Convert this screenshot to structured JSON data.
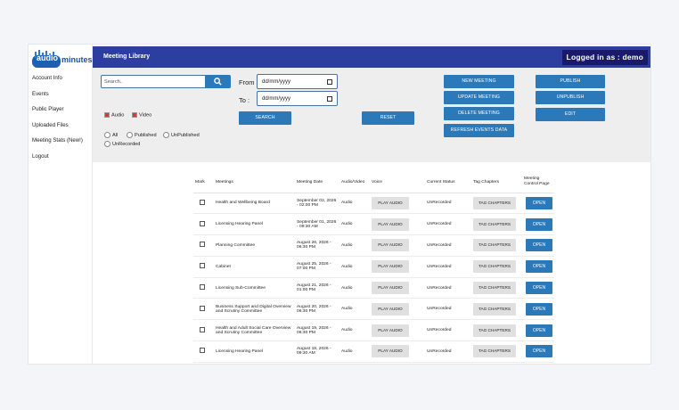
{
  "brand": {
    "logo_part1": "audio",
    "logo_part2": "minutes",
    "accent": "#2c3fa0",
    "button_color": "#2b79b8"
  },
  "sidebar": {
    "items": [
      {
        "label": "Account Info"
      },
      {
        "label": "Events"
      },
      {
        "label": "Public Player"
      },
      {
        "label": "Uploaded Files"
      },
      {
        "label": "Meeting Stats (New!)"
      },
      {
        "label": "Logout"
      }
    ]
  },
  "header": {
    "title": "Meeting Library",
    "login": "Logged in as : demo"
  },
  "filters": {
    "search_placeholder": "Search..",
    "audio_label": "Audio",
    "video_label": "Video",
    "audio_checked": true,
    "video_checked": true,
    "radios": {
      "all": "All",
      "published": "Published",
      "unpublished": "UnPublished",
      "unrecorded": "UnRecorded"
    },
    "from_label": "From :",
    "to_label": "To :",
    "from_value": "dd/mm/yyyy",
    "to_value": "dd/mm/yyyy",
    "search_button": "SEARCH",
    "reset_button": "RESET"
  },
  "actions": {
    "new_meeting": "NEW MEETING",
    "update_meeting": "UPDATE MEETING",
    "delete_meeting": "DELETE MEETING",
    "refresh_events": "REFRESH EVENTS DATA",
    "publish": "PUBLISH",
    "unpublish": "UNPUBLISH",
    "edit": "EDIT"
  },
  "table": {
    "headers": {
      "mark": "Mark",
      "meetings": "Meetings",
      "meeting_date": "Meeting Date",
      "audio_video": "Audio/Video",
      "voice": "Voice",
      "current_status": "Current Status",
      "tag_chapters": "Tag Chapters",
      "control_page": "Meeting Control Page"
    },
    "play_label": "PLAY AUDIO",
    "tag_label": "TAG CHAPTERS",
    "open_label": "OPEN",
    "rows": [
      {
        "meeting": "Health and Wellbeing Board",
        "date": "September 03, 2026 - 02:00 PM",
        "type": "Audio",
        "status": "UnRecorded"
      },
      {
        "meeting": "Licensing Hearing Panel",
        "date": "September 01, 2026 - 09:30 AM",
        "type": "Audio",
        "status": "UnRecorded"
      },
      {
        "meeting": "Planning Committee",
        "date": "August 26, 2026 - 06:30 PM",
        "type": "Audio",
        "status": "UnRecorded"
      },
      {
        "meeting": "Cabinet",
        "date": "August 25, 2026 - 07:00 PM",
        "type": "Audio",
        "status": "UnRecorded"
      },
      {
        "meeting": "Licensing Sub-Committee",
        "date": "August 21, 2026 - 01:00 PM",
        "type": "Audio",
        "status": "UnRecorded"
      },
      {
        "meeting": "Business Support and Digital Overview and Scrutiny Committee",
        "date": "August 20, 2026 - 06:30 PM",
        "type": "Audio",
        "status": "UnRecorded"
      },
      {
        "meeting": "Health and Adult Social Care Overview and Scrutiny Committee",
        "date": "August 19, 2026 - 06:30 PM",
        "type": "Audio",
        "status": "UnRecorded"
      },
      {
        "meeting": "Licensing Hearing Panel",
        "date": "August 18, 2026 - 09:30 AM",
        "type": "Audio",
        "status": "UnRecorded"
      }
    ]
  }
}
